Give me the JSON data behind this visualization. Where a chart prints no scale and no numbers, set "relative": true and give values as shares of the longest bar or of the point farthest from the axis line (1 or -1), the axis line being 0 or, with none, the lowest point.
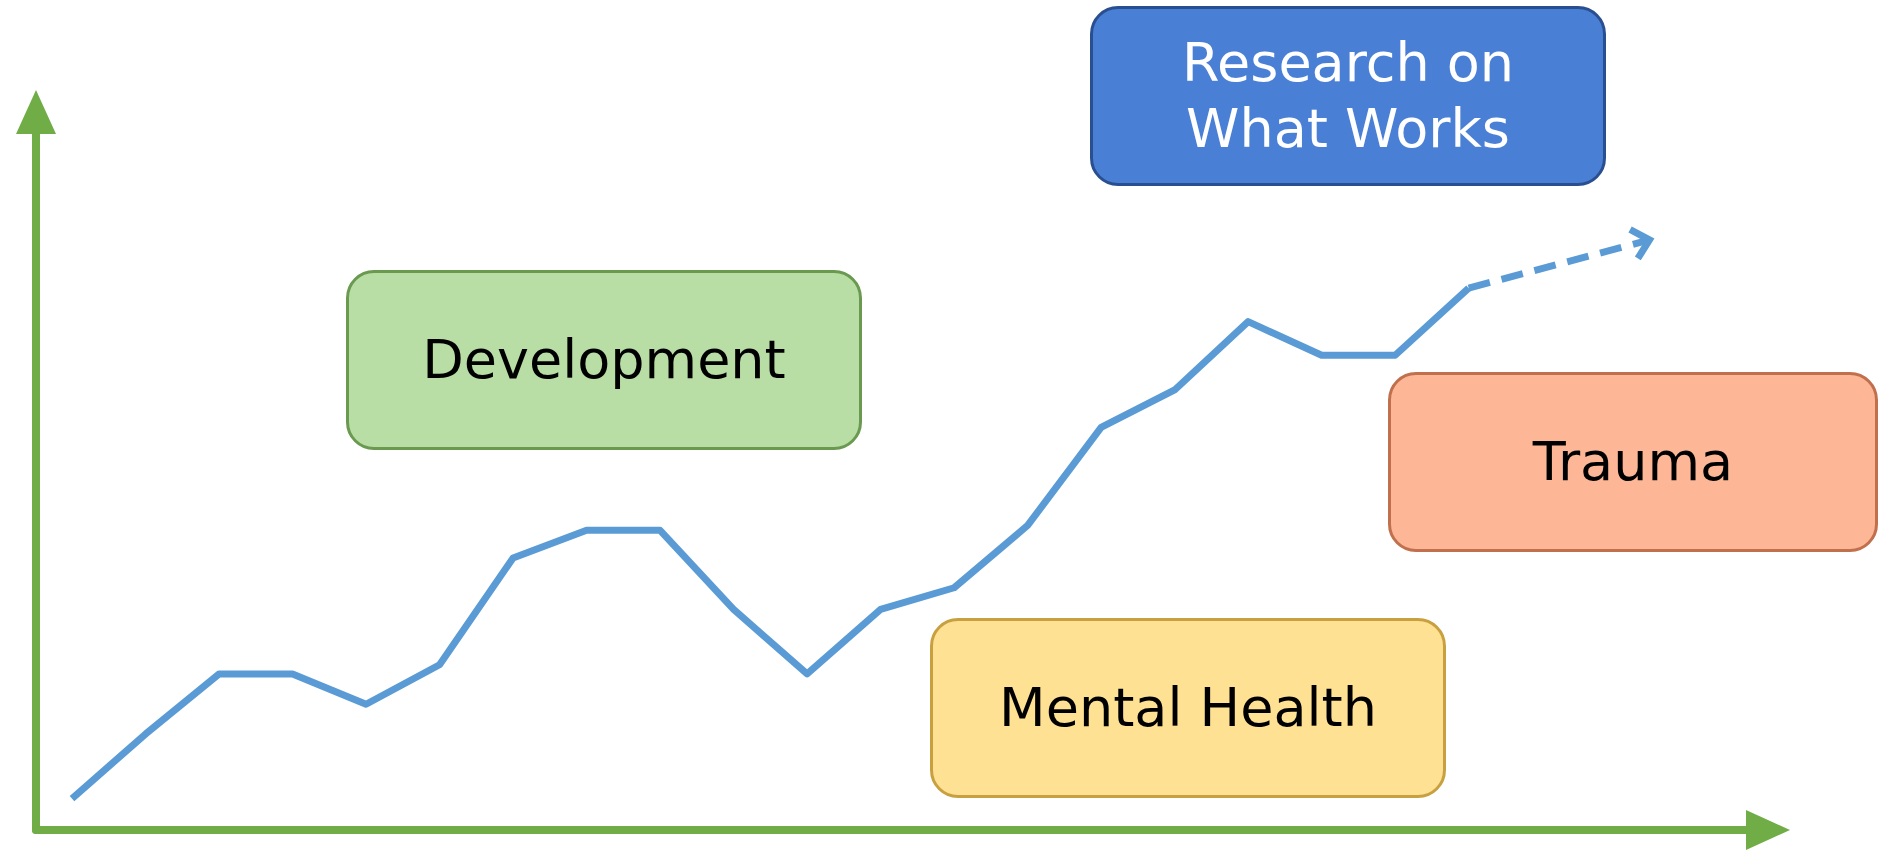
{
  "chart_data": {
    "type": "line",
    "relative": true,
    "marker": "none",
    "grid": false,
    "annotations": [
      "Development",
      "Research on What Works",
      "Trauma",
      "Mental Health"
    ],
    "categories": [
      null,
      null,
      null,
      null,
      null,
      null,
      null,
      null,
      null,
      null,
      null,
      null,
      null,
      null,
      null,
      null,
      null,
      null,
      null,
      null
    ],
    "series": [
      {
        "color": "#5b9bd5",
        "values": [
          0.058,
          0.177,
          0.288,
          0.288,
          0.232,
          0.305,
          0.502,
          0.553,
          0.553,
          0.407,
          0.288,
          0.407,
          0.447,
          0.562,
          0.743,
          0.812,
          0.938,
          0.876,
          0.876,
          1
        ]
      }
    ]
  }
}
